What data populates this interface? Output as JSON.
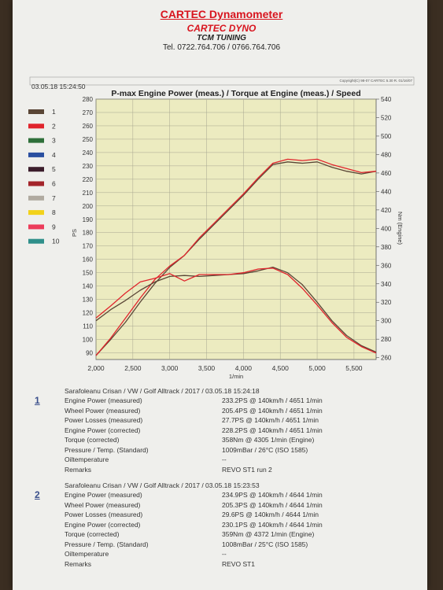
{
  "header": {
    "title": "CARTEC Dynamometer",
    "subtitle": "CARTEC DYNO",
    "tuning": "TCM TUNING",
    "phone": "Tel. 0722.764.706 / 0766.764.706"
  },
  "copyright": "Copyright(C) 98-07 CARTEC 5.30 R. 01/16/07",
  "timestamp": "03.05.18 15:24:50",
  "chart_data": {
    "type": "line",
    "title": "P-max Engine Power (meas.) / Torque at Engine (meas.) / Speed",
    "xlabel": "1/min",
    "ylabel_left": "PS",
    "ylabel_right": "Nm (Engine)",
    "xlim": [
      2000,
      5800
    ],
    "ylim_left": [
      85,
      280
    ],
    "ylim_right": [
      258,
      540
    ],
    "x_ticks": [
      "2,000",
      "2,500",
      "3,000",
      "3,500",
      "4,000",
      "4,500",
      "5,000",
      "5,500"
    ],
    "x_tick_values": [
      2000,
      2500,
      3000,
      3500,
      4000,
      4500,
      5000,
      5500
    ],
    "y_ticks_left": [
      90,
      100,
      110,
      120,
      130,
      140,
      150,
      160,
      170,
      180,
      190,
      200,
      210,
      220,
      230,
      240,
      250,
      260,
      270,
      280
    ],
    "y_ticks_right": [
      260,
      280,
      300,
      320,
      340,
      360,
      380,
      400,
      420,
      440,
      460,
      480,
      500,
      520,
      540
    ],
    "grid": true,
    "legend_position": "left",
    "legend": [
      {
        "label": "1",
        "color": "#5a4636"
      },
      {
        "label": "2",
        "color": "#e0242c"
      },
      {
        "label": "3",
        "color": "#2e6f3a"
      },
      {
        "label": "4",
        "color": "#2a4fa0"
      },
      {
        "label": "5",
        "color": "#3c1e2c"
      },
      {
        "label": "6",
        "color": "#a3242a"
      },
      {
        "label": "7",
        "color": "#b0aaa0"
      },
      {
        "label": "8",
        "color": "#f2d21a"
      },
      {
        "label": "9",
        "color": "#ec3c5a"
      },
      {
        "label": "10",
        "color": "#2f8f8a"
      }
    ],
    "series": [
      {
        "color": "#5a4636",
        "axis": "left",
        "x": [
          2000,
          2200,
          2400,
          2600,
          2800,
          3000,
          3200,
          3400,
          3600,
          3800,
          4000,
          4200,
          4400,
          4600,
          4800,
          5000,
          5200,
          5400,
          5600,
          5800
        ],
        "y": [
          88,
          100,
          113,
          128,
          142,
          154,
          163,
          175,
          186,
          197,
          208,
          220,
          231,
          233,
          232,
          233,
          229,
          226,
          224,
          226
        ]
      },
      {
        "color": "#e0242c",
        "axis": "left",
        "x": [
          2000,
          2200,
          2400,
          2600,
          2800,
          3000,
          3200,
          3400,
          3600,
          3800,
          4000,
          4200,
          4400,
          4600,
          4800,
          5000,
          5200,
          5400,
          5600,
          5800
        ],
        "y": [
          88,
          101,
          116,
          131,
          145,
          155,
          163,
          176,
          187,
          198,
          209,
          221,
          232,
          235,
          234,
          235,
          231,
          228,
          225,
          226
        ]
      },
      {
        "color": "#5a4636",
        "axis": "right",
        "x": [
          2000,
          2200,
          2400,
          2600,
          2800,
          3000,
          3200,
          3400,
          3600,
          3800,
          4000,
          4200,
          4400,
          4600,
          4800,
          5000,
          5200,
          5400,
          5600,
          5800
        ],
        "y": [
          300,
          312,
          322,
          333,
          342,
          348,
          349,
          348,
          349,
          350,
          351,
          354,
          358,
          352,
          339,
          320,
          300,
          284,
          273,
          266
        ]
      },
      {
        "color": "#e0242c",
        "axis": "right",
        "x": [
          2000,
          2200,
          2400,
          2600,
          2800,
          3000,
          3200,
          3400,
          3600,
          3800,
          4000,
          4200,
          4400,
          4600,
          4800,
          5000,
          5200,
          5400,
          5600,
          5800
        ],
        "y": [
          303,
          316,
          330,
          342,
          346,
          351,
          343,
          350,
          350,
          350,
          352,
          356,
          357,
          350,
          335,
          317,
          298,
          282,
          272,
          265
        ]
      }
    ]
  },
  "report": [
    {
      "number": "1",
      "header": "Sarafoleanu Crisan / VW / Golf Alltrack / 2017 / 03.05.18 15:24:18",
      "rows": [
        {
          "label": "Engine Power (measured)",
          "value": "233.2PS @ 140km/h / 4651 1/min"
        },
        {
          "label": "Wheel Power (measured)",
          "value": "205.4PS @ 140km/h / 4651 1/min"
        },
        {
          "label": "Power Losses (measured)",
          "value": "27.7PS @ 140km/h / 4651 1/min"
        },
        {
          "label": "Engine Power (corrected)",
          "value": "228.2PS @ 140km/h / 4651 1/min"
        },
        {
          "label": "Torque (corrected)",
          "value": "358Nm @ 4305 1/min (Engine)"
        },
        {
          "label": "Pressure / Temp. (Standard)",
          "value": "1009mBar / 26°C   (ISO 1585)"
        },
        {
          "label": "Oiltemperature",
          "value": "--"
        },
        {
          "label": "Remarks",
          "value": "REVO ST1 run 2"
        }
      ]
    },
    {
      "number": "2",
      "header": "Sarafoleanu Crisan / VW / Golf Alltrack / 2017 / 03.05.18 15:23:53",
      "rows": [
        {
          "label": "Engine Power (measured)",
          "value": "234.9PS @ 140km/h / 4644 1/min"
        },
        {
          "label": "Wheel Power (measured)",
          "value": "205.3PS @ 140km/h / 4644 1/min"
        },
        {
          "label": "Power Losses (measured)",
          "value": "29.6PS @ 140km/h / 4644 1/min"
        },
        {
          "label": "Engine Power (corrected)",
          "value": "230.1PS @ 140km/h / 4644 1/min"
        },
        {
          "label": "Torque (corrected)",
          "value": "359Nm @ 4372 1/min (Engine)"
        },
        {
          "label": "Pressure / Temp. (Standard)",
          "value": "1008mBar / 25°C   (ISO 1585)"
        },
        {
          "label": "Oiltemperature",
          "value": "--"
        },
        {
          "label": "Remarks",
          "value": "REVO ST1"
        }
      ]
    }
  ]
}
